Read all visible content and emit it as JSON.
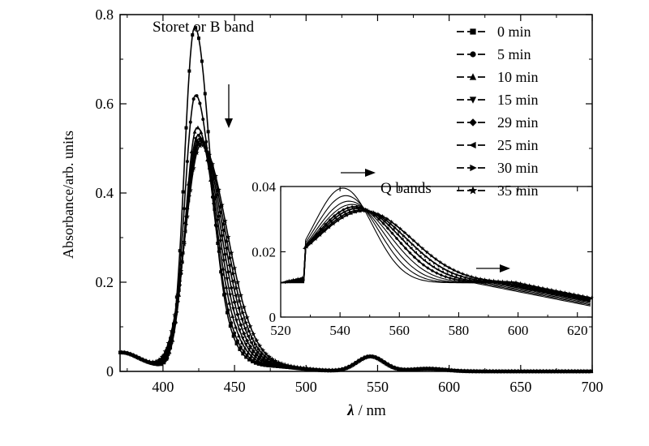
{
  "chart_data": [
    {
      "type": "line",
      "title": "",
      "xlabel_symbol": "λ",
      "xlabel_unit": " / nm",
      "ylabel": "Absorbance/arb. units",
      "xlim": [
        370,
        700
      ],
      "ylim": [
        0,
        0.8
      ],
      "x_ticks": [
        400,
        450,
        500,
        550,
        600,
        650,
        700
      ],
      "y_ticks": [
        0,
        0.2,
        0.4,
        0.6,
        0.8
      ],
      "y_tick_labels": [
        "0",
        "0.2",
        "0.4",
        "0.6",
        "0.8"
      ],
      "grid": false,
      "legend_position": "top-right",
      "series": [
        {
          "name": "0 min",
          "marker": "square",
          "peak": 0.755,
          "center": 422.0
        },
        {
          "name": "5 min",
          "marker": "circle",
          "peak": 0.6,
          "center": 422.5
        },
        {
          "name": "10 min",
          "marker": "triangle-up",
          "peak": 0.525,
          "center": 423.5
        },
        {
          "name": "15 min",
          "marker": "triangle-down",
          "peak": 0.505,
          "center": 424.0
        },
        {
          "name": "29 min",
          "marker": "diamond",
          "peak": 0.495,
          "center": 424.5
        },
        {
          "name": "25 min",
          "marker": "triangle-left",
          "peak": 0.488,
          "center": 425.0
        },
        {
          "name": "30 min",
          "marker": "triangle-right",
          "peak": 0.482,
          "center": 425.5
        },
        {
          "name": "35 min",
          "marker": "star",
          "peak": 0.475,
          "center": 426.0
        }
      ],
      "annotations": [
        "Storet or B band"
      ]
    },
    {
      "type": "line",
      "title": "",
      "xlim": [
        520,
        625
      ],
      "ylim": [
        0,
        0.04
      ],
      "x_ticks": [
        520,
        540,
        560,
        580,
        600,
        620
      ],
      "y_ticks": [
        0,
        0.02,
        0.04
      ],
      "y_tick_labels": [
        "0",
        "0.02",
        "0.04"
      ],
      "annotations": [
        "Q bands"
      ],
      "series": [
        {
          "name": "0 min",
          "peak_x": 541,
          "peak_y": 0.0395
        },
        {
          "name": "5 min",
          "peak_x": 542,
          "peak_y": 0.0372
        },
        {
          "name": "10 min",
          "peak_x": 543,
          "peak_y": 0.0355
        },
        {
          "name": "15 min",
          "peak_x": 544,
          "peak_y": 0.0345
        },
        {
          "name": "29 min",
          "peak_x": 545,
          "peak_y": 0.0338
        },
        {
          "name": "25 min",
          "peak_x": 546,
          "peak_y": 0.0333
        },
        {
          "name": "30 min",
          "peak_x": 547,
          "peak_y": 0.0328
        },
        {
          "name": "35 min",
          "peak_x": 548,
          "peak_y": 0.0325
        }
      ]
    }
  ]
}
